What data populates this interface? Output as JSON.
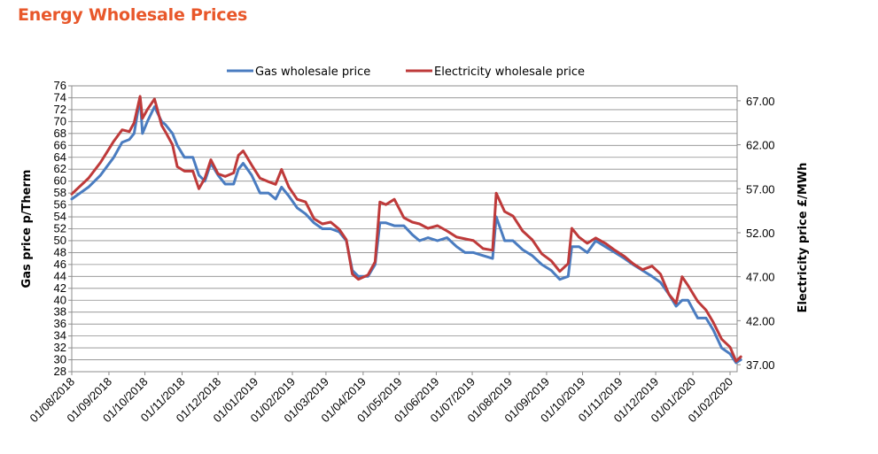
{
  "title": "Energy Wholesale Prices",
  "colors": {
    "title": "#e8572a",
    "gas": "#4a7cc0",
    "electricity": "#be3a3a",
    "grid": "#8c8c8c"
  },
  "chart_data": {
    "type": "line",
    "title": "Energy Wholesale Prices",
    "legend_position": "top-center",
    "grid": true,
    "x_ticks": [
      "01/08/2018",
      "01/09/2018",
      "01/10/2018",
      "01/11/2018",
      "01/12/2018",
      "01/01/2019",
      "01/02/2019",
      "01/03/2019",
      "01/04/2019",
      "01/05/2019",
      "01/06/2019",
      "01/07/2019",
      "01/08/2019",
      "01/09/2019",
      "01/10/2019",
      "01/11/2019",
      "01/12/2019",
      "01/01/2020",
      "01/02/2020"
    ],
    "y_left": {
      "label": "Gas price p/Therm",
      "range": [
        28,
        76
      ],
      "ticks": [
        "28",
        "30",
        "32",
        "34",
        "36",
        "38",
        "40",
        "42",
        "44",
        "46",
        "48",
        "50",
        "52",
        "54",
        "56",
        "58",
        "60",
        "62",
        "64",
        "66",
        "68",
        "70",
        "72",
        "74",
        "76"
      ]
    },
    "y_right": {
      "label": "Electricity price £/MWh",
      "range": [
        36.2,
        68.7
      ],
      "ticks": [
        "37.00",
        "42.00",
        "47.00",
        "52.00",
        "57.00",
        "62.00",
        "67.00"
      ]
    },
    "series": [
      {
        "name": "Gas wholesale price",
        "axis": "left",
        "points": [
          [
            "01/08/2018",
            57
          ],
          [
            "15/08/2018",
            59
          ],
          [
            "25/08/2018",
            61
          ],
          [
            "05/09/2018",
            64
          ],
          [
            "12/09/2018",
            66.5
          ],
          [
            "18/09/2018",
            67
          ],
          [
            "22/09/2018",
            68
          ],
          [
            "27/09/2018",
            74
          ],
          [
            "29/09/2018",
            68
          ],
          [
            "03/10/2018",
            70
          ],
          [
            "09/10/2018",
            72.5
          ],
          [
            "15/10/2018",
            70
          ],
          [
            "18/10/2018",
            69.5
          ],
          [
            "24/10/2018",
            68
          ],
          [
            "28/10/2018",
            66
          ],
          [
            "03/11/2018",
            64
          ],
          [
            "10/11/2018",
            64
          ],
          [
            "15/11/2018",
            61
          ],
          [
            "20/11/2018",
            60
          ],
          [
            "25/11/2018",
            63
          ],
          [
            "01/12/2018",
            61
          ],
          [
            "07/12/2018",
            59.5
          ],
          [
            "14/12/2018",
            59.5
          ],
          [
            "18/12/2018",
            62
          ],
          [
            "22/12/2018",
            63
          ],
          [
            "29/12/2018",
            61
          ],
          [
            "05/01/2019",
            58
          ],
          [
            "12/01/2019",
            58
          ],
          [
            "18/01/2019",
            57
          ],
          [
            "23/01/2019",
            59
          ],
          [
            "29/01/2019",
            57.5
          ],
          [
            "05/02/2019",
            55.5
          ],
          [
            "12/02/2019",
            54.5
          ],
          [
            "19/02/2019",
            53
          ],
          [
            "26/02/2019",
            52
          ],
          [
            "05/03/2019",
            52
          ],
          [
            "12/03/2019",
            51.5
          ],
          [
            "18/03/2019",
            50
          ],
          [
            "23/03/2019",
            45
          ],
          [
            "28/03/2019",
            44
          ],
          [
            "05/04/2019",
            44
          ],
          [
            "11/04/2019",
            46
          ],
          [
            "15/04/2019",
            53
          ],
          [
            "20/04/2019",
            53
          ],
          [
            "27/04/2019",
            52.5
          ],
          [
            "05/05/2019",
            52.5
          ],
          [
            "12/05/2019",
            51
          ],
          [
            "18/05/2019",
            50
          ],
          [
            "25/05/2019",
            50.5
          ],
          [
            "02/06/2019",
            50
          ],
          [
            "10/06/2019",
            50.5
          ],
          [
            "18/06/2019",
            49
          ],
          [
            "25/06/2019",
            48
          ],
          [
            "02/07/2019",
            48
          ],
          [
            "10/07/2019",
            47.5
          ],
          [
            "18/07/2019",
            47
          ],
          [
            "21/07/2019",
            54
          ],
          [
            "28/07/2019",
            50
          ],
          [
            "04/08/2019",
            50
          ],
          [
            "12/08/2019",
            48.5
          ],
          [
            "20/08/2019",
            47.5
          ],
          [
            "28/08/2019",
            46
          ],
          [
            "05/09/2019",
            45
          ],
          [
            "12/09/2019",
            43.5
          ],
          [
            "19/09/2019",
            44
          ],
          [
            "22/09/2019",
            49
          ],
          [
            "28/09/2019",
            49
          ],
          [
            "05/10/2019",
            48
          ],
          [
            "12/10/2019",
            50
          ],
          [
            "20/10/2019",
            49
          ],
          [
            "28/10/2019",
            48
          ],
          [
            "05/11/2019",
            47
          ],
          [
            "12/11/2019",
            46
          ],
          [
            "20/11/2019",
            45
          ],
          [
            "28/11/2019",
            44
          ],
          [
            "05/12/2019",
            43
          ],
          [
            "12/12/2019",
            41
          ],
          [
            "18/12/2019",
            39
          ],
          [
            "23/12/2019",
            40
          ],
          [
            "28/12/2019",
            40
          ],
          [
            "05/01/2020",
            37
          ],
          [
            "12/01/2020",
            37
          ],
          [
            "18/01/2020",
            35
          ],
          [
            "25/01/2020",
            32
          ],
          [
            "01/02/2020",
            31
          ],
          [
            "06/02/2020",
            29.5
          ],
          [
            "10/02/2020",
            30
          ]
        ]
      },
      {
        "name": "Electricity wholesale price",
        "axis": "right",
        "points": [
          [
            "01/08/2018",
            56.4
          ],
          [
            "15/08/2018",
            58.2
          ],
          [
            "25/08/2018",
            60
          ],
          [
            "05/09/2018",
            62.4
          ],
          [
            "12/09/2018",
            63.7
          ],
          [
            "18/09/2018",
            63.5
          ],
          [
            "22/09/2018",
            64.5
          ],
          [
            "27/09/2018",
            67.5
          ],
          [
            "29/09/2018",
            65
          ],
          [
            "03/10/2018",
            66
          ],
          [
            "09/10/2018",
            67.2
          ],
          [
            "15/10/2018",
            64.2
          ],
          [
            "18/10/2018",
            63.5
          ],
          [
            "24/10/2018",
            62
          ],
          [
            "28/10/2018",
            59.5
          ],
          [
            "03/11/2018",
            59
          ],
          [
            "10/11/2018",
            59
          ],
          [
            "15/11/2018",
            57
          ],
          [
            "20/11/2018",
            58.2
          ],
          [
            "25/11/2018",
            60.3
          ],
          [
            "01/12/2018",
            58.7
          ],
          [
            "07/12/2018",
            58.4
          ],
          [
            "14/12/2018",
            58.8
          ],
          [
            "18/12/2018",
            60.8
          ],
          [
            "22/12/2018",
            61.3
          ],
          [
            "29/12/2018",
            59.7
          ],
          [
            "05/01/2019",
            58.2
          ],
          [
            "12/01/2019",
            57.8
          ],
          [
            "18/01/2019",
            57.5
          ],
          [
            "23/01/2019",
            59.2
          ],
          [
            "29/01/2019",
            57.2
          ],
          [
            "05/02/2019",
            55.8
          ],
          [
            "12/02/2019",
            55.5
          ],
          [
            "19/02/2019",
            53.6
          ],
          [
            "26/02/2019",
            53
          ],
          [
            "05/03/2019",
            53.2
          ],
          [
            "12/03/2019",
            52.4
          ],
          [
            "18/03/2019",
            51.2
          ],
          [
            "23/03/2019",
            47.3
          ],
          [
            "28/03/2019",
            46.7
          ],
          [
            "05/04/2019",
            47.2
          ],
          [
            "11/04/2019",
            48.7
          ],
          [
            "15/04/2019",
            55.5
          ],
          [
            "20/04/2019",
            55.2
          ],
          [
            "27/04/2019",
            55.8
          ],
          [
            "05/05/2019",
            53.7
          ],
          [
            "12/05/2019",
            53.2
          ],
          [
            "18/05/2019",
            53
          ],
          [
            "25/05/2019",
            52.5
          ],
          [
            "02/06/2019",
            52.8
          ],
          [
            "10/06/2019",
            52.2
          ],
          [
            "18/06/2019",
            51.5
          ],
          [
            "25/06/2019",
            51.3
          ],
          [
            "02/07/2019",
            51.1
          ],
          [
            "10/07/2019",
            50.2
          ],
          [
            "18/07/2019",
            50
          ],
          [
            "21/07/2019",
            56.5
          ],
          [
            "28/07/2019",
            54.4
          ],
          [
            "04/08/2019",
            53.9
          ],
          [
            "12/08/2019",
            52.2
          ],
          [
            "20/08/2019",
            51.2
          ],
          [
            "28/08/2019",
            49.6
          ],
          [
            "05/09/2019",
            48.8
          ],
          [
            "12/09/2019",
            47.6
          ],
          [
            "19/09/2019",
            48.5
          ],
          [
            "22/09/2019",
            52.5
          ],
          [
            "28/09/2019",
            51.5
          ],
          [
            "05/10/2019",
            50.8
          ],
          [
            "12/10/2019",
            51.4
          ],
          [
            "20/10/2019",
            50.8
          ],
          [
            "28/10/2019",
            50
          ],
          [
            "05/11/2019",
            49.3
          ],
          [
            "12/11/2019",
            48.5
          ],
          [
            "20/11/2019",
            47.8
          ],
          [
            "28/11/2019",
            48.2
          ],
          [
            "05/12/2019",
            47.3
          ],
          [
            "12/12/2019",
            45
          ],
          [
            "18/12/2019",
            44
          ],
          [
            "23/12/2019",
            47
          ],
          [
            "28/12/2019",
            46
          ],
          [
            "05/01/2020",
            44.2
          ],
          [
            "12/01/2020",
            43.2
          ],
          [
            "18/01/2020",
            41.8
          ],
          [
            "25/01/2020",
            39.9
          ],
          [
            "01/02/2020",
            39
          ],
          [
            "06/02/2020",
            37.4
          ],
          [
            "10/02/2020",
            37.9
          ]
        ]
      }
    ]
  }
}
